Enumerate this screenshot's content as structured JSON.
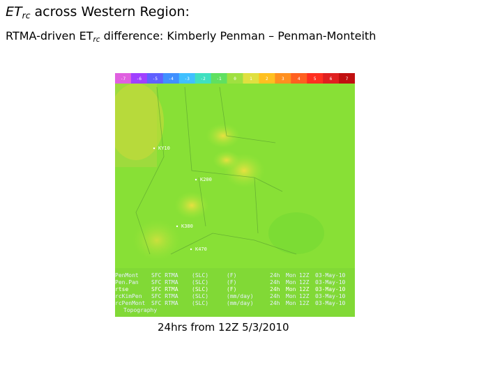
{
  "title": {
    "main": "ET",
    "sub": "rc",
    "rest": " across Western Region:"
  },
  "subtitle": {
    "main": "RTMA-driven ET",
    "sub": "rc",
    "rest": " difference: Kimberly Penman – Penman-Monteith"
  },
  "map": {
    "colorbar_labels": [
      "-7",
      "-6",
      "-5",
      "-4",
      "-3",
      "-2",
      "-1",
      "0",
      "1",
      "2",
      "3",
      "4",
      "5",
      "6",
      "7"
    ],
    "stations": [
      "KY10",
      "K200",
      "K380",
      "K470"
    ],
    "legend_rows": [
      [
        "PenMont",
        "SFC RTMA",
        "(SLC)",
        "(F)",
        "24h",
        "Mon",
        "12Z",
        "03-May-10"
      ],
      [
        "Pen.Pan",
        "SFC RTMA",
        "(SLC)",
        "(F)",
        "24h",
        "Mon",
        "12Z",
        "03-May-10"
      ],
      [
        "rtse",
        "SFC RTMA",
        "(SLC)",
        "(F)",
        "24h",
        "Mon",
        "12Z",
        "03-May-10"
      ],
      [
        "rcKimPen",
        "SFC RTMA",
        "(SLC)",
        "(mm/day)",
        "24h",
        "Mon",
        "12Z",
        "03-May-10"
      ],
      [
        "rcPenMont",
        "SFC RTMA",
        "(SLC)",
        "(mm/day)",
        "24h",
        "Mon",
        "12Z",
        "03-May-10"
      ],
      [
        "Topography"
      ]
    ]
  },
  "caption": "24hrs from 12Z 5/3/2010"
}
